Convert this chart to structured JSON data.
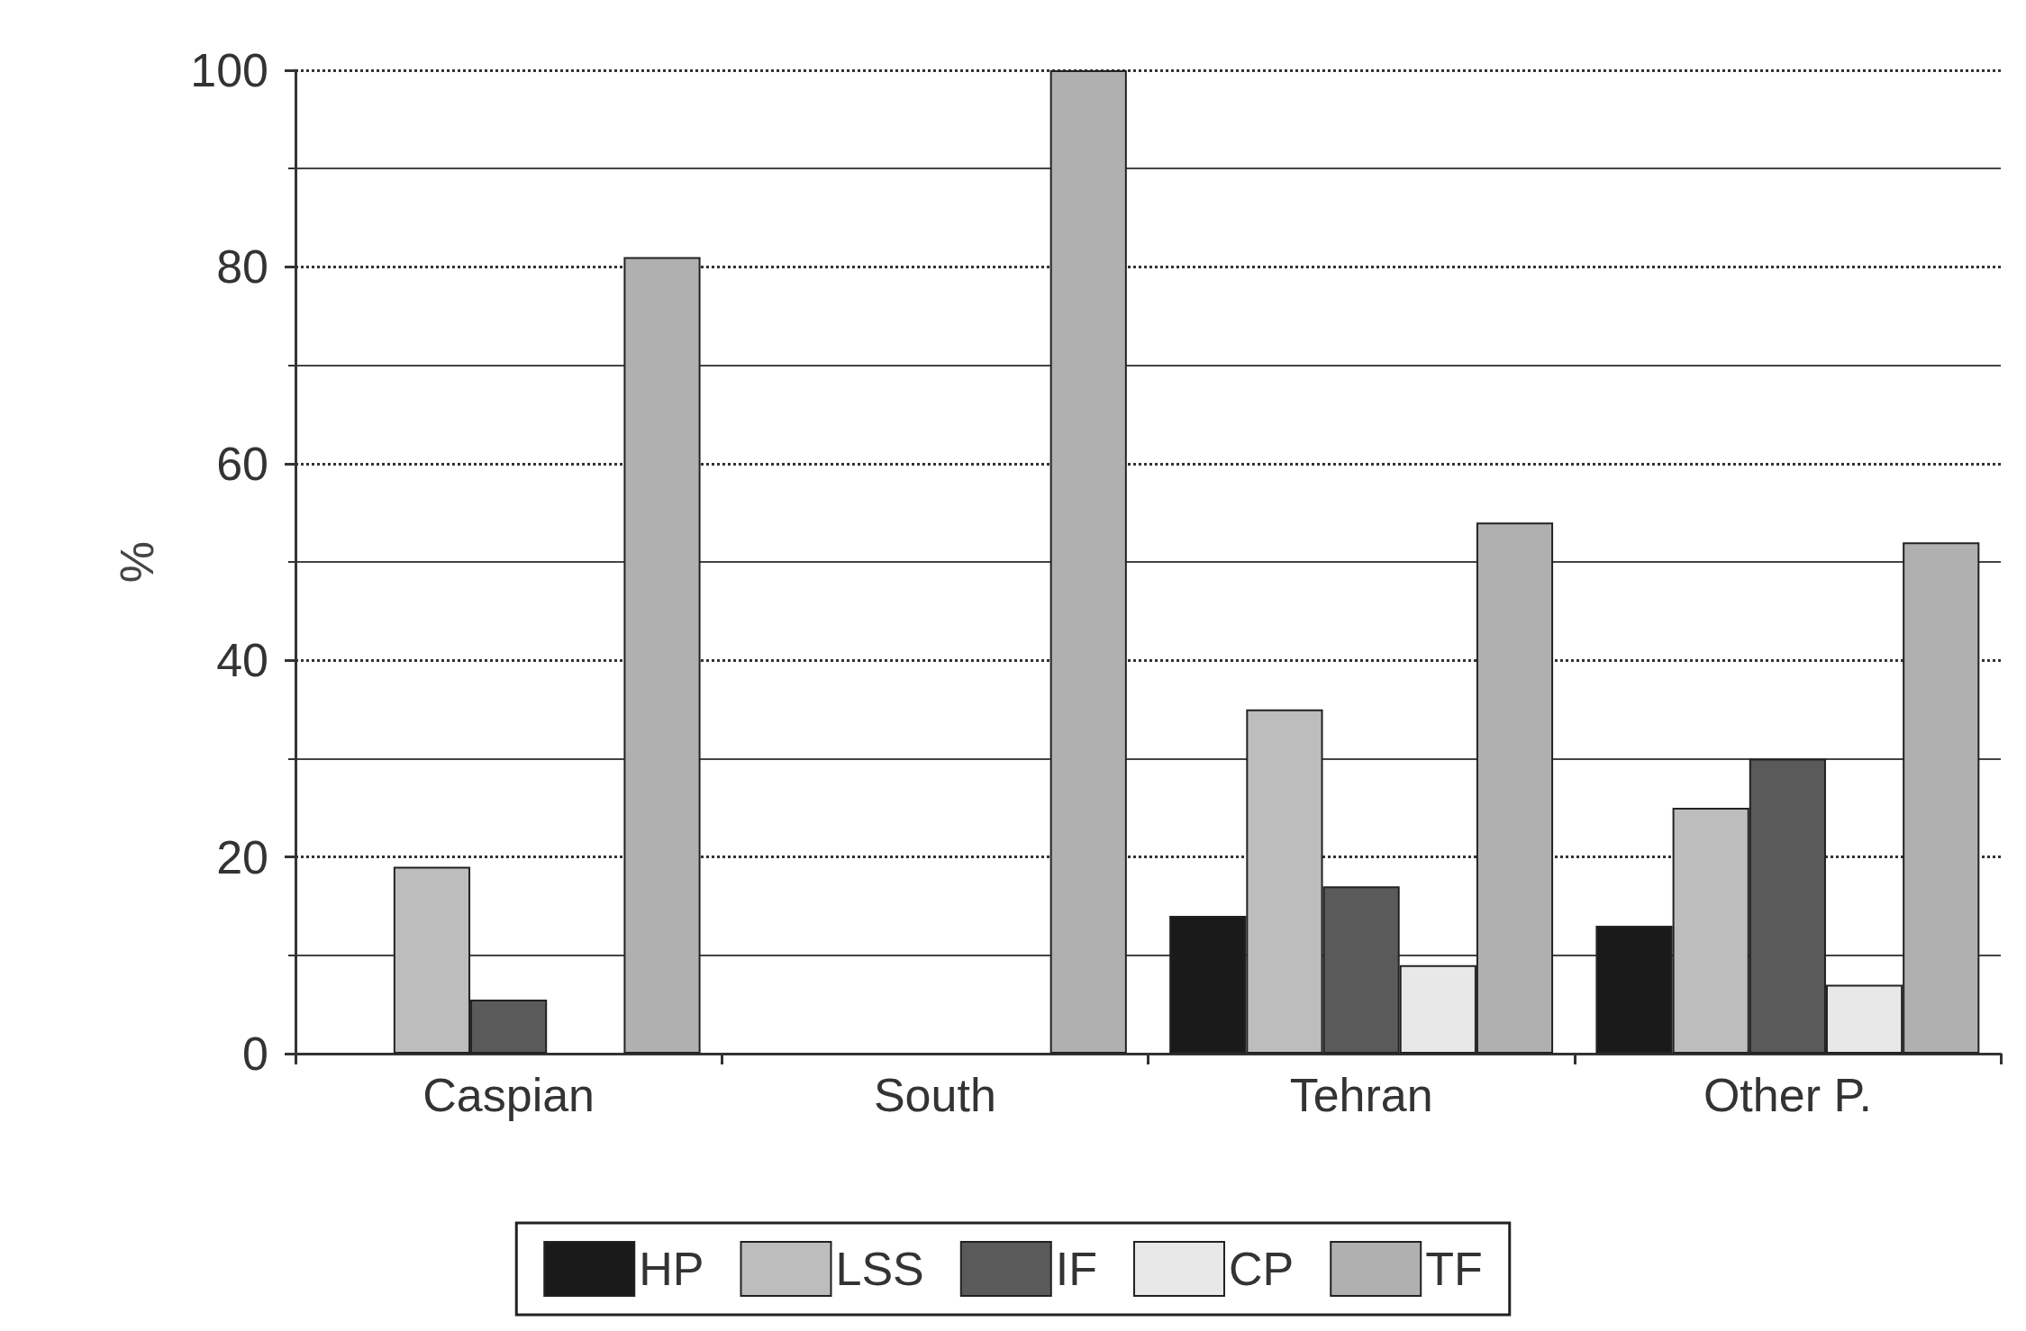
{
  "chart_data": {
    "type": "bar",
    "ylabel": "%",
    "categories": [
      "Caspian",
      "South",
      "Tehran",
      "Other P."
    ],
    "series": [
      {
        "name": "HP",
        "color": "#1a1a1a",
        "values": [
          0,
          0,
          14,
          13
        ]
      },
      {
        "name": "LSS",
        "color": "#bdbdbd",
        "values": [
          19,
          0,
          35,
          25
        ]
      },
      {
        "name": "IF",
        "color": "#5a5a5a",
        "values": [
          5.5,
          0,
          17,
          30
        ]
      },
      {
        "name": "CP",
        "color": "#e8e8e8",
        "values": [
          0,
          0,
          9,
          7
        ]
      },
      {
        "name": "TF",
        "color": "#b0b0b0",
        "values": [
          81,
          100,
          54,
          52
        ]
      }
    ],
    "ylim": [
      0,
      100
    ],
    "yticks": [
      0,
      20,
      40,
      60,
      80,
      100
    ],
    "grid": "y",
    "legend": "bottom"
  }
}
